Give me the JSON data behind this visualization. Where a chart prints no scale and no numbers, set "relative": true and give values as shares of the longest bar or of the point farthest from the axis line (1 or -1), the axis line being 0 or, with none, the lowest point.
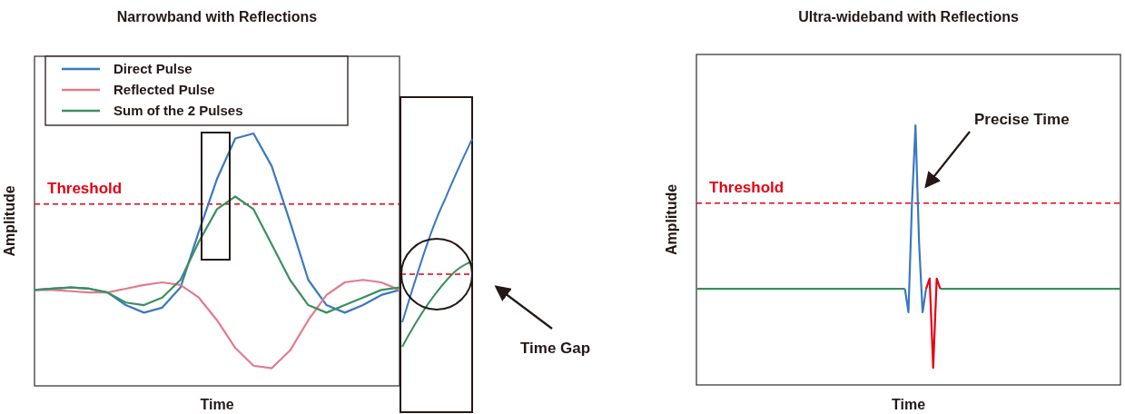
{
  "chart_data": [
    {
      "type": "line",
      "title": "Narrowband with Reflections",
      "xlabel": "Time",
      "ylabel": "Amplitude",
      "relative": true,
      "legend": "top left",
      "annotations": [
        "Time Gap"
      ],
      "categories": [
        null,
        null,
        null,
        null,
        null,
        null,
        null,
        null,
        null,
        null,
        null,
        null,
        null,
        null,
        null,
        null,
        null,
        null,
        null,
        null,
        null
      ],
      "ref_lines": [
        {
          "axis": "y",
          "value": 0.72,
          "label": "Threshold",
          "color": "#e60012",
          "line_style": "dashed"
        }
      ],
      "series": [
        {
          "name": "Direct Pulse",
          "color": "#3a78c2",
          "values": [
            0.38,
            0.385,
            0.39,
            0.385,
            0.37,
            0.32,
            0.29,
            0.31,
            0.39,
            0.61,
            0.82,
            0.98,
            1,
            0.87,
            0.65,
            0.42,
            0.32,
            0.29,
            0.32,
            0.36,
            0.38
          ]
        },
        {
          "name": "Reflected Pulse",
          "color": "#e27b8c",
          "values": [
            0.38,
            0.38,
            0.375,
            0.37,
            0.37,
            0.385,
            0.4,
            0.41,
            0.4,
            0.35,
            0.26,
            0.15,
            0.08,
            0.07,
            0.14,
            0.26,
            0.36,
            0.41,
            0.42,
            0.41,
            0.38
          ]
        },
        {
          "name": "Sum of the 2 Pulses",
          "color": "#3b8f5f",
          "values": [
            0.38,
            0.385,
            0.39,
            0.385,
            0.37,
            0.33,
            0.32,
            0.35,
            0.42,
            0.57,
            0.7,
            0.75,
            0.7,
            0.56,
            0.42,
            0.32,
            0.29,
            0.32,
            0.35,
            0.38,
            0.39
          ]
        }
      ]
    },
    {
      "type": "line",
      "title": "Ultra-wideband with Reflections",
      "xlabel": "Time",
      "ylabel": "Amplitude",
      "relative": true,
      "annotations": [
        "Precise Time"
      ],
      "categories": [
        null,
        null,
        null,
        null,
        null,
        null,
        null,
        null,
        null,
        null,
        null,
        null,
        null,
        null,
        null,
        null,
        null,
        null,
        null,
        null,
        null,
        null,
        null,
        null,
        null,
        null,
        null,
        null,
        null,
        null,
        null,
        null,
        null,
        null,
        null,
        null,
        null,
        null,
        null,
        null,
        null,
        null,
        null,
        null,
        null,
        null,
        null,
        null,
        null,
        null,
        null,
        null,
        null,
        null,
        null,
        null,
        null,
        null,
        null,
        null,
        null,
        null,
        null,
        null,
        null,
        null,
        null,
        null,
        null,
        null,
        null,
        null,
        null,
        null,
        null,
        null,
        null,
        null,
        null,
        null,
        null,
        null,
        null,
        null,
        null,
        null,
        null,
        null,
        null,
        null,
        null,
        null,
        null,
        null,
        null,
        null,
        null,
        null,
        null,
        null,
        null,
        null,
        null,
        null,
        null,
        null,
        null,
        null,
        null,
        null,
        null,
        null,
        null,
        null,
        null,
        null,
        null,
        null,
        null,
        null,
        null
      ],
      "ref_lines": [
        {
          "axis": "y",
          "value": 0.7,
          "label": "Threshold",
          "color": "#e60012",
          "line_style": "dashed"
        }
      ],
      "series": [
        {
          "color": "#3b8f5f",
          "values": [
            0.37,
            0.37,
            0.37,
            0.37,
            0.37,
            0.37,
            0.37,
            0.37,
            0.37,
            0.37,
            0.37,
            0.37,
            0.37,
            0.37,
            0.37,
            0.37,
            0.37,
            0.37,
            0.37,
            0.37,
            0.37,
            0.37,
            0.37,
            0.37,
            0.37,
            0.37,
            0.37,
            0.37,
            0.37,
            0.37,
            0.37,
            0.37,
            0.37,
            0.37,
            0.37,
            0.37,
            0.37,
            0.37,
            0.37,
            0.37,
            0.37,
            0.37,
            0.37,
            0.37,
            0.37,
            0.37,
            0.37,
            0.37,
            0.37,
            0.37,
            0.37,
            0.37,
            0.37,
            0.37,
            0.37,
            0.37,
            0.37,
            0.37,
            0.37,
            0.37,
            null,
            null,
            null,
            null,
            null,
            null,
            null,
            null,
            null,
            0.37,
            0.37,
            0.37,
            0.37,
            0.37,
            0.37,
            0.37,
            0.37,
            0.37,
            0.37,
            0.37,
            0.37,
            0.37,
            0.37,
            0.37,
            0.37,
            0.37,
            0.37,
            0.37,
            0.37,
            0.37,
            0.37,
            0.37,
            0.37,
            0.37,
            0.37,
            0.37,
            0.37,
            0.37,
            0.37,
            0.37,
            0.37,
            0.37,
            0.37,
            0.37,
            0.37,
            0.37,
            0.37,
            0.37,
            0.37,
            0.37,
            0.37,
            0.37,
            0.37,
            0.37,
            0.37,
            0.37,
            0.37,
            0.37,
            0.37,
            0.37,
            0.37
          ]
        },
        {
          "color": "#3a78c2",
          "values": [
            null,
            null,
            null,
            null,
            null,
            null,
            null,
            null,
            null,
            null,
            null,
            null,
            null,
            null,
            null,
            null,
            null,
            null,
            null,
            null,
            null,
            null,
            null,
            null,
            null,
            null,
            null,
            null,
            null,
            null,
            null,
            null,
            null,
            null,
            null,
            null,
            null,
            null,
            null,
            null,
            null,
            null,
            null,
            null,
            null,
            null,
            null,
            null,
            null,
            null,
            null,
            null,
            null,
            null,
            null,
            null,
            null,
            null,
            null,
            0.37,
            0.28,
            0.7,
            1,
            0.55,
            0.28,
            0.37,
            null,
            null,
            null,
            null,
            null,
            null,
            null,
            null,
            null,
            null,
            null,
            null,
            null,
            null,
            null,
            null,
            null,
            null,
            null,
            null,
            null,
            null,
            null,
            null,
            null,
            null,
            null,
            null,
            null,
            null,
            null,
            null,
            null,
            null,
            null,
            null,
            null,
            null,
            null,
            null,
            null,
            null,
            null,
            null,
            null,
            null,
            null,
            null,
            null,
            null,
            null,
            null,
            null,
            null,
            null
          ]
        },
        {
          "color": "#e60012",
          "values": [
            null,
            null,
            null,
            null,
            null,
            null,
            null,
            null,
            null,
            null,
            null,
            null,
            null,
            null,
            null,
            null,
            null,
            null,
            null,
            null,
            null,
            null,
            null,
            null,
            null,
            null,
            null,
            null,
            null,
            null,
            null,
            null,
            null,
            null,
            null,
            null,
            null,
            null,
            null,
            null,
            null,
            null,
            null,
            null,
            null,
            null,
            null,
            null,
            null,
            null,
            null,
            null,
            null,
            null,
            null,
            null,
            null,
            null,
            null,
            null,
            null,
            null,
            null,
            null,
            null,
            0.37,
            0.41,
            0.066,
            0.41,
            0.37,
            null,
            null,
            null,
            null,
            null,
            null,
            null,
            null,
            null,
            null,
            null,
            null,
            null,
            null,
            null,
            null,
            null,
            null,
            null,
            null,
            null,
            null,
            null,
            null,
            null,
            null,
            null,
            null,
            null,
            null,
            null,
            null,
            null,
            null,
            null,
            null,
            null,
            null,
            null,
            null,
            null,
            null,
            null,
            null,
            null,
            null,
            null,
            null,
            null,
            null,
            null
          ]
        }
      ]
    }
  ]
}
